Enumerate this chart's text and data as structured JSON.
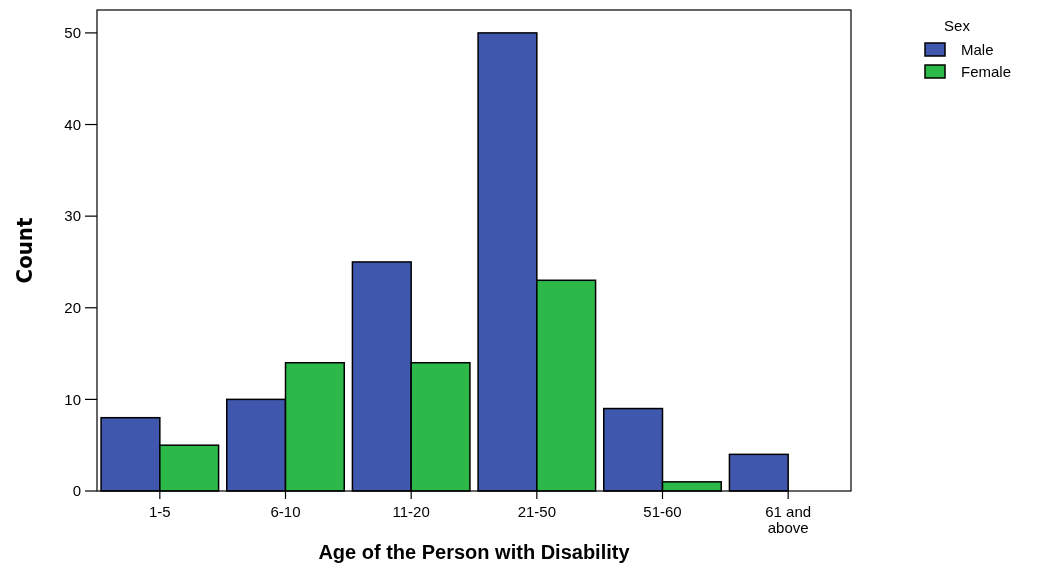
{
  "chart_data": {
    "type": "bar",
    "xlabel": "Age of the Person with Disability",
    "ylabel": "Count",
    "legend_title": "Sex",
    "categories": [
      "1-5",
      "6-10",
      "11-20",
      "21-50",
      "51-60",
      "61 and above"
    ],
    "series": [
      {
        "name": "Male",
        "color": "#3f58ad",
        "values": [
          8,
          10,
          25,
          50,
          9,
          4
        ]
      },
      {
        "name": "Female",
        "color": "#2db84a",
        "values": [
          5,
          14,
          14,
          23,
          1,
          0
        ]
      }
    ],
    "ylim": [
      0,
      52.5
    ],
    "yticks": [
      0,
      10,
      20,
      30,
      40,
      50
    ],
    "grid": false,
    "legend": "top right"
  }
}
